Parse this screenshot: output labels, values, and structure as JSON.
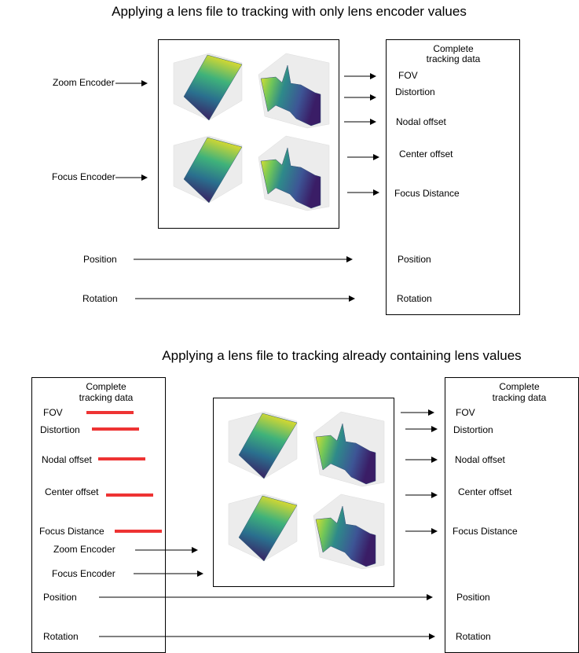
{
  "top": {
    "title": "Applying a lens file to tracking with only lens encoder values",
    "inputs": {
      "zoom": "Zoom Encoder",
      "focus": "Focus Encoder",
      "position": "Position",
      "rotation": "Rotation"
    },
    "output": {
      "header": [
        "Complete",
        "tracking data"
      ],
      "fields": [
        "FOV",
        "Distortion",
        "Nodal offset",
        "Center offset",
        "Focus Distance",
        "Position",
        "Rotation"
      ]
    }
  },
  "bottom": {
    "title": "Applying a lens file to tracking already containing lens values",
    "input": {
      "header": [
        "Complete",
        "tracking data"
      ],
      "fields": [
        "FOV",
        "Distortion",
        "Nodal offset",
        "Center offset",
        "Focus Distance",
        "Zoom Encoder",
        "Focus Encoder",
        "Position",
        "Rotation"
      ]
    },
    "output": {
      "header": [
        "Complete",
        "tracking data"
      ],
      "fields": [
        "FOV",
        "Distortion",
        "Nodal offset",
        "Center offset",
        "Focus Distance",
        "Position",
        "Rotation"
      ]
    }
  },
  "colors": {
    "strike": "#ee3333",
    "arrow": "#000000",
    "viridis_high": "#f4e61e",
    "viridis_mid": "#23908c",
    "viridis_low": "#3b0f54"
  }
}
